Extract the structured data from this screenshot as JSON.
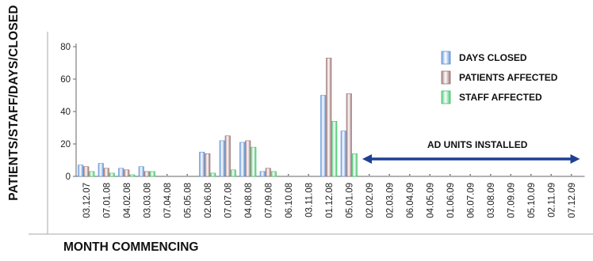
{
  "chart_data": {
    "type": "bar",
    "title": "",
    "ylabel": "PATIENTS/STAFF/DAYS/CLOSED",
    "xlabel": "MONTH COMMENCING",
    "ylim": [
      0,
      80
    ],
    "yticks": [
      0,
      20,
      40,
      60,
      80
    ],
    "grid": false,
    "legend_position": "top-right",
    "categories": [
      "03.12.07",
      "07.01.08",
      "04.02.08",
      "03.03.08",
      "07.04.08",
      "05.05.08",
      "02.06.08",
      "07.07.08",
      "04.08.08",
      "07.09.08",
      "06.10.08",
      "03.11.08",
      "01.12.08",
      "05.01.09",
      "02.02.09",
      "02.03.09",
      "06.04.09",
      "04.05.09",
      "01.06.09",
      "06.07.09",
      "03.08.09",
      "07.09.09",
      "05.10.09",
      "02.11.09",
      "07.12.09"
    ],
    "series": [
      {
        "name": "DAYS CLOSED",
        "color": "#5b8fd6",
        "values": [
          7,
          8,
          5,
          6,
          0,
          0,
          15,
          22,
          21,
          3,
          0,
          0,
          50,
          28,
          0,
          0,
          0,
          0,
          0,
          0,
          0,
          0,
          0,
          0,
          0
        ]
      },
      {
        "name": "PATIENTS AFFECTED",
        "color": "#9a6e6e",
        "values": [
          6,
          5,
          4,
          3,
          0,
          0,
          14,
          25,
          22,
          5,
          0,
          0,
          73,
          51,
          0,
          0,
          0,
          0,
          0,
          0,
          0,
          0,
          0,
          0,
          0
        ]
      },
      {
        "name": "STAFF AFFECTED",
        "color": "#3ec46a",
        "values": [
          3,
          2,
          1,
          3,
          0,
          0,
          2,
          4,
          18,
          3,
          0,
          0,
          34,
          14,
          0,
          0,
          0,
          0,
          0,
          0,
          0,
          0,
          0,
          0,
          0
        ]
      }
    ],
    "annotation": {
      "text": "AD UNITS INSTALLED",
      "from_category": "02.02.09",
      "to_category": "07.12.09"
    }
  }
}
